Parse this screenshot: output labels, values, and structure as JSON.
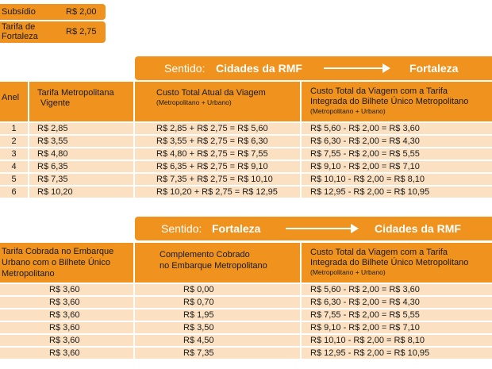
{
  "legend": [
    {
      "label": "Subsídio",
      "value": "R$ 2,00"
    },
    {
      "label_line1": "Tarifa de",
      "label_line2": "Fortaleza",
      "value": "R$ 2,75"
    }
  ],
  "section1": {
    "banner": {
      "prefix": "Sentido:",
      "from": "Cidades da RMF",
      "to": "Fortaleza"
    },
    "headers": {
      "anel": "Anel",
      "tarifa_line1": "Tarifa Metropolitana",
      "tarifa_line2": "Vigente",
      "custo_atual_line1": "Custo Total Atual da Viagem",
      "custo_atual_sub": "(Metropolitano + Urbano)",
      "custo_integrada_line1": "Custo Total da Viagem com a Tarifa",
      "custo_integrada_line2": "Integrada do Bilhete Único Metropolitano",
      "custo_integrada_sub": "(Metropolitano + Urbano)"
    },
    "rows": [
      {
        "anel": "1",
        "tarifa": "R$ 2,85",
        "atual": "R$ 2,85 + R$ 2,75 = R$ 5,60",
        "integrada": "R$ 5,60 - R$ 2,00 = R$ 3,60"
      },
      {
        "anel": "2",
        "tarifa": "R$ 3,55",
        "atual": "R$ 3,55 + R$ 2,75 = R$ 6,30",
        "integrada": "R$ 6,30 - R$ 2,00 = R$ 4,30"
      },
      {
        "anel": "3",
        "tarifa": "R$ 4,80",
        "atual": "R$ 4,80 + R$ 2,75 = R$ 7,55",
        "integrada": "R$ 7,55 - R$ 2,00 = R$ 5,55"
      },
      {
        "anel": "4",
        "tarifa": "R$ 6,35",
        "atual": "R$ 6,35 + R$ 2,75 = R$ 9,10",
        "integrada": "R$ 9,10 - R$ 2,00 = R$ 7,10"
      },
      {
        "anel": "5",
        "tarifa": "R$ 7,35",
        "atual": "R$ 7,35 + R$ 2,75 = R$ 10,10",
        "integrada": "R$ 10,10 - R$ 2,00 = R$ 8,10"
      },
      {
        "anel": "6",
        "tarifa": "R$ 10,20",
        "atual": "R$ 10,20 + R$ 2,75 = R$ 12,95",
        "integrada": "R$ 12,95 - R$ 2,00 = R$ 10,95"
      }
    ]
  },
  "section2": {
    "banner": {
      "prefix": "Sentido:",
      "from": "Fortaleza",
      "to": "Cidades da RMF"
    },
    "headers": {
      "cobrada_line1": "Tarifa Cobrada no Embarque",
      "cobrada_line2": "Urbano com o Bilhete Único",
      "cobrada_line3": "Metropolitano",
      "complemento_line1": "Complemento Cobrado",
      "complemento_line2": "no Embarque Metropolitano",
      "custo_integrada_line1": "Custo Total da Viagem com a Tarifa",
      "custo_integrada_line2": "Integrada do Bilhete Único Metropolitano",
      "custo_integrada_sub": "(Metropolitano + Urbano)"
    },
    "rows": [
      {
        "cobrada": "R$ 3,60",
        "complemento": "R$ 0,00",
        "integrada": "R$ 5,60 - R$ 2,00 = R$ 3,60"
      },
      {
        "cobrada": "R$ 3,60",
        "complemento": "R$ 0,70",
        "integrada": "R$ 6,30 - R$ 2,00 = R$ 4,30"
      },
      {
        "cobrada": "R$ 3,60",
        "complemento": "R$ 1,95",
        "integrada": "R$ 7,55 - R$ 2,00 = R$ 5,55"
      },
      {
        "cobrada": "R$ 3,60",
        "complemento": "R$ 3,50",
        "integrada": "R$ 9,10 - R$ 2,00 = R$ 7,10"
      },
      {
        "cobrada": "R$ 3,60",
        "complemento": "R$ 4,50",
        "integrada": "R$ 10,10 - R$ 2,00 = R$ 8,10"
      },
      {
        "cobrada": "R$ 3,60",
        "complemento": "R$ 7,35",
        "integrada": "R$ 12,95 - R$ 2,00 = R$ 10,95"
      }
    ]
  }
}
